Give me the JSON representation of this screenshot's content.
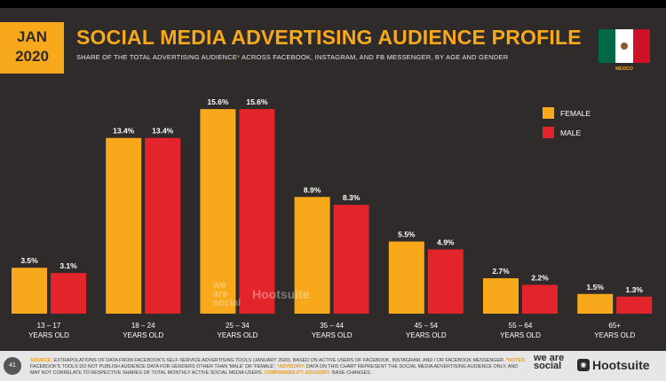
{
  "badge": {
    "month": "JAN",
    "year": "2020"
  },
  "title": "SOCIAL MEDIA ADVERTISING AUDIENCE PROFILE",
  "subtitle": {
    "text": "SHARE OF THE TOTAL ADVERTISING AUDIENCE",
    "star": "*",
    "rest": " ACROSS FACEBOOK, INSTAGRAM, AND FB MESSENGER, BY AGE AND GENDER"
  },
  "flag": {
    "label": "MEXICO",
    "colors": [
      "#006847",
      "#ffffff",
      "#ce1126"
    ]
  },
  "colors": {
    "female": "#f7a81b",
    "male": "#e3242b",
    "background": "#2f2b2b",
    "accent": "#f7a81b"
  },
  "chart_data": {
    "type": "bar",
    "title": "SOCIAL MEDIA ADVERTISING AUDIENCE PROFILE",
    "categories": [
      [
        "13 – 17",
        "YEARS OLD"
      ],
      [
        "18 – 24",
        "YEARS OLD"
      ],
      [
        "25 – 34",
        "YEARS OLD"
      ],
      [
        "35 – 44",
        "YEARS OLD"
      ],
      [
        "45 – 54",
        "YEARS OLD"
      ],
      [
        "55 – 64",
        "YEARS OLD"
      ],
      [
        "65+",
        "YEARS OLD"
      ]
    ],
    "series": [
      {
        "name": "FEMALE",
        "values": [
          3.5,
          13.4,
          15.6,
          8.9,
          5.5,
          2.7,
          1.5
        ],
        "labels": [
          "3.5%",
          "13.4%",
          "15.6%",
          "8.9%",
          "5.5%",
          "2.7%",
          "1.5%"
        ]
      },
      {
        "name": "MALE",
        "values": [
          3.1,
          13.4,
          15.6,
          8.3,
          4.9,
          2.2,
          1.3
        ],
        "labels": [
          "3.1%",
          "13.4%",
          "15.6%",
          "8.3%",
          "4.9%",
          "2.2%",
          "1.3%"
        ]
      }
    ],
    "ylim": [
      0,
      16
    ],
    "grid": false,
    "legend": "top-right",
    "xlabel": "",
    "ylabel": ""
  },
  "watermark": {
    "brand1": "we are social",
    "brand2": "Hootsuite"
  },
  "footer": {
    "page": "41",
    "source_label": "SOURCE:",
    "source_text": " EXTRAPOLATIONS OF DATA FROM FACEBOOK'S SELF-SERVICE ADVERTISING TOOLS (JANUARY 2020). BASED ON ACTIVE USERS OF FACEBOOK, INSTAGRAM, AND / OR FACEBOOK MESSENGER.",
    "notes_label": " *NOTES:",
    "notes_text": " FACEBOOK'S TOOLS DO NOT PUBLISH AUDIENCE DATA FOR GENDERS OTHER THAN 'MALE' OR 'FEMALE'.",
    "advisory_label": " *ADVISORY:",
    "advisory_text": " DATA ON THIS CHART REPRESENT THE SOCIAL MEDIA ADVERTISING AUDIENCE ONLY, AND MAY NOT CORRELATE TO RESPECTIVE SHARES OF TOTAL MONTHLY ACTIVE SOCIAL MEDIA USERS.",
    "comparability_label": " COMPARABILITY ADVISORY:",
    "comparability_text": " BASE CHANGES.",
    "brand1": "we are social",
    "brand2": "Hootsuite"
  }
}
